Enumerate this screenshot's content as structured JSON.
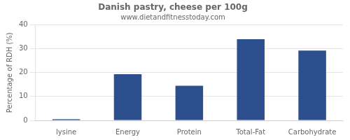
{
  "chart_data": {
    "type": "bar",
    "title": "Danish pastry, cheese per 100g",
    "subtitle": "www.dietandfitnesstoday.com",
    "ylabel": "Percentage of RDH (%)",
    "categories": [
      "lysine",
      "Energy",
      "Protein",
      "Total-Fat",
      "Carbohydrate"
    ],
    "values": [
      0.5,
      19.3,
      14.5,
      34.0,
      29.2
    ],
    "color": "#2d4f8e",
    "ylim": [
      0,
      40
    ],
    "yticks": [
      0,
      10,
      20,
      30,
      40
    ],
    "grid": true
  }
}
